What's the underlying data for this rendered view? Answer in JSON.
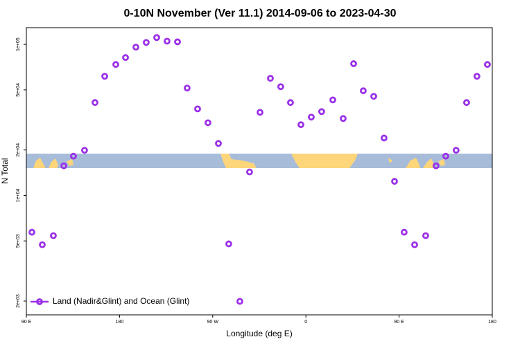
{
  "chart_data": {
    "type": "scatter",
    "title": "0-10N November (Ver 11.1)   2014-09-06 to 2023-04-30",
    "x_label": "Longitude (deg E)",
    "y_label": "N Total",
    "yscale": "log",
    "legend": "lower left",
    "xlim": [
      90,
      540
    ],
    "xticks": [
      {
        "value": 90,
        "label": "90 E"
      },
      {
        "value": 180,
        "label": "180"
      },
      {
        "value": 270,
        "label": "90 W"
      },
      {
        "value": 360,
        "label": "0"
      },
      {
        "value": 450,
        "label": "90 E"
      },
      {
        "value": 540,
        "label": "180"
      }
    ],
    "ylim": [
      1620,
      129000
    ],
    "yticks": [
      {
        "value": 2000,
        "label": "2e+03"
      },
      {
        "value": 5000,
        "label": "5e+03"
      },
      {
        "value": 10000,
        "label": "1e+04"
      },
      {
        "value": 20000,
        "label": "2e+04"
      },
      {
        "value": 50000,
        "label": "5e+04"
      },
      {
        "value": 100000,
        "label": "1e+05"
      }
    ],
    "series": [
      {
        "name": "Land (Nadir&Glint) and Ocean (Glint)",
        "color": "#9b30e8",
        "x": [
          95.4,
          105.4,
          116.1,
          126.2,
          135.5,
          146.2,
          156.3,
          165.7,
          176.4,
          185.8,
          195.8,
          205.8,
          215.9,
          225.9,
          236.0,
          245.3,
          255.4,
          265.4,
          275.5,
          285.5,
          296.2,
          305.6,
          315.7,
          325.7,
          335.7,
          345.1,
          355.2,
          365.2,
          375.2,
          386.0,
          396.0,
          406.1,
          415.4,
          425.5,
          435.5,
          445.6,
          454.9,
          465.0,
          475.7,
          485.7,
          495.1,
          505.1,
          515.2,
          525.2,
          535.3
        ],
        "values": [
          5710,
          4720,
          5420,
          15700,
          18200,
          19900,
          41200,
          61500,
          73600,
          81800,
          95900,
          103000,
          111000,
          105000,
          104000,
          51400,
          37400,
          30300,
          22100,
          4780,
          1990,
          14300,
          35500,
          59600,
          52500,
          41200,
          29400,
          33000,
          35900,
          42900,
          32300,
          74500,
          49300,
          45300,
          24000,
          12400,
          5710,
          4720,
          5420,
          15700,
          18200,
          19900,
          41200,
          61500,
          73600
        ]
      }
    ]
  }
}
